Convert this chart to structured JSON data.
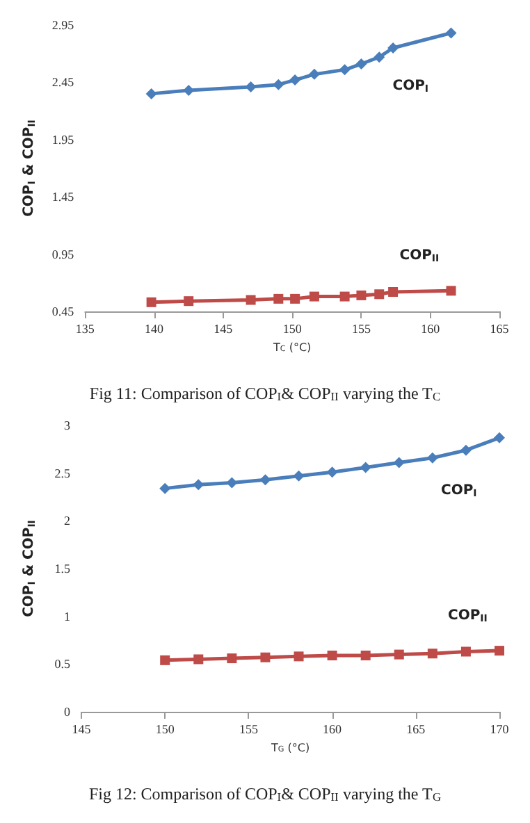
{
  "chart_data": [
    {
      "type": "line",
      "title": "Fig 11: Comparison of COP$_{I}$& COP$_{II}$ varying the T$_{C}$",
      "xlabel": "T$_{C}$ (°C)",
      "ylabel": "COP$_{I}$ & COP$_{II}$",
      "x": [
        139.8,
        142.5,
        147,
        149,
        150.2,
        151.6,
        153.8,
        155,
        156.3,
        157.3,
        161.5
      ],
      "series": [
        {
          "name": "COP$_{I}$",
          "color": "#4a7ebb",
          "marker": "diamond",
          "values": [
            2.35,
            2.38,
            2.41,
            2.43,
            2.47,
            2.52,
            2.56,
            2.61,
            2.67,
            2.75,
            2.88
          ]
        },
        {
          "name": "COP$_{II}$",
          "color": "#be4b48",
          "marker": "square",
          "values": [
            0.53,
            0.54,
            0.55,
            0.56,
            0.56,
            0.58,
            0.58,
            0.59,
            0.6,
            0.62,
            0.63
          ]
        }
      ],
      "xlim": [
        135,
        165
      ],
      "xticks": [
        135,
        140,
        145,
        150,
        155,
        160,
        165
      ],
      "ylim": [
        0.45,
        2.95
      ],
      "yticks": [
        0.45,
        0.95,
        1.45,
        1.95,
        2.45,
        2.95
      ],
      "grid": false,
      "legend": false,
      "line_style": "solid"
    },
    {
      "type": "line",
      "title": "Fig 12: Comparison of COP$_{I}$& COP$_{II}$ varying the T$_{G}$",
      "xlabel": "T$_{G}$ (°C)",
      "ylabel": "COP$_{I}$ & COP$_{II}$",
      "x": [
        150,
        152,
        154,
        156,
        158,
        160,
        162,
        164,
        166,
        168,
        170
      ],
      "series": [
        {
          "name": "COP$_{I}$",
          "color": "#4a7ebb",
          "marker": "diamond",
          "values": [
            2.34,
            2.38,
            2.4,
            2.43,
            2.47,
            2.51,
            2.56,
            2.61,
            2.66,
            2.74,
            2.87
          ]
        },
        {
          "name": "COP$_{II}$",
          "color": "#be4b48",
          "marker": "square",
          "values": [
            0.54,
            0.55,
            0.56,
            0.57,
            0.58,
            0.59,
            0.59,
            0.6,
            0.61,
            0.63,
            0.64
          ]
        }
      ],
      "xlim": [
        145,
        170
      ],
      "xticks": [
        145,
        150,
        155,
        160,
        165,
        170
      ],
      "ylim": [
        0,
        3
      ],
      "yticks": [
        0,
        0.5,
        1,
        1.5,
        2,
        2.5,
        3
      ],
      "grid": false,
      "legend": false,
      "line_style": "solid"
    }
  ]
}
